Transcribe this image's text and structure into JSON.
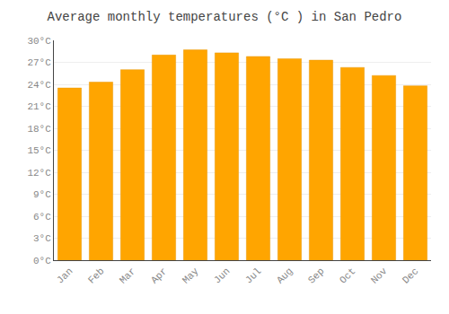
{
  "chart_data": {
    "type": "bar",
    "title": "Average monthly temperatures (°C ) in San Pedro",
    "categories": [
      "Jan",
      "Feb",
      "Mar",
      "Apr",
      "May",
      "Jun",
      "Jul",
      "Aug",
      "Sep",
      "Oct",
      "Nov",
      "Dec"
    ],
    "values": [
      23.5,
      24.3,
      26.0,
      28.0,
      28.7,
      28.3,
      27.8,
      27.5,
      27.3,
      26.3,
      25.2,
      23.8
    ],
    "color": "#FFA500",
    "ylim": [
      0,
      30
    ],
    "yticks": [
      {
        "value": 0,
        "label": "0°C"
      },
      {
        "value": 3,
        "label": "3°C"
      },
      {
        "value": 6,
        "label": "6°C"
      },
      {
        "value": 9,
        "label": "9°C"
      },
      {
        "value": 12,
        "label": "12°C"
      },
      {
        "value": 15,
        "label": "15°C"
      },
      {
        "value": 18,
        "label": "18°C"
      },
      {
        "value": 21,
        "label": "21°C"
      },
      {
        "value": 24,
        "label": "24°C"
      },
      {
        "value": 27,
        "label": "27°C"
      },
      {
        "value": 30,
        "label": "30°C"
      }
    ],
    "grid": true
  }
}
